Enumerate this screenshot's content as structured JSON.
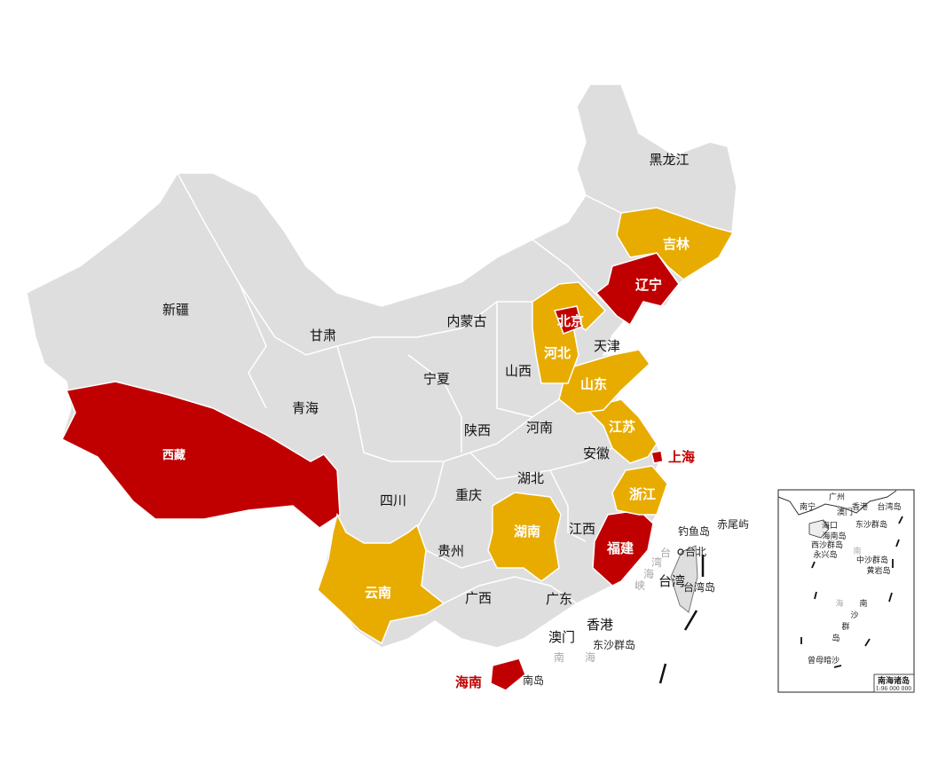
{
  "colors": {
    "base": "#dedede",
    "red": "#c00000",
    "yellow": "#e8ac00",
    "label_red": "#c00000"
  },
  "legend_categories": {
    "red": [
      "北京",
      "辽宁",
      "西藏",
      "福建",
      "上海",
      "海南"
    ],
    "yellow": [
      "吉林",
      "河北",
      "山东",
      "江苏",
      "浙江",
      "湖南",
      "云南"
    ]
  },
  "labels": {
    "heilongjiang": "黑龙江",
    "jilin": "吉林",
    "liaoning": "辽宁",
    "beijing": "北京",
    "tianjin": "天津",
    "hebei": "河北",
    "shandong": "山东",
    "neimenggu": "内蒙古",
    "xinjiang": "新疆",
    "gansu": "甘肃",
    "ningxia": "宁夏",
    "shanxi": "山西",
    "qinghai": "青海",
    "shaanxi": "陕西",
    "henan": "河南",
    "jiangsu": "江苏",
    "shanghai": "上海",
    "anhui": "安徽",
    "xizang": "西藏",
    "sichuan": "四川",
    "chongqing": "重庆",
    "hubei": "湖北",
    "zhejiang": "浙江",
    "hunan": "湖南",
    "jiangxi": "江西",
    "fujian": "福建",
    "guizhou": "贵州",
    "yunnan": "云南",
    "guangxi": "广西",
    "guangdong": "广东",
    "taiwan": "台湾",
    "taibei": "台北",
    "taiwan_dao": "台湾岛",
    "diaoyu": "钓鱼岛",
    "chiwei": "赤尾屿",
    "xianggang": "香港",
    "aomen": "澳门",
    "dongsha": "东沙群岛",
    "hainan": "海南",
    "hainan_dao": "南岛",
    "nanhai_1": "南",
    "nanhai_2": "海",
    "strait_1": "台",
    "strait_2": "湾",
    "strait_3": "海",
    "strait_4": "峡"
  },
  "inset": {
    "title": "南海诸岛",
    "scale": "1:96 000 000",
    "labels": [
      "南宁",
      "广州",
      "香港",
      "澳门",
      "台湾岛",
      "海口",
      "东沙群岛",
      "海南岛",
      "西沙群岛",
      "永兴岛",
      "中沙群岛",
      "黄岩岛",
      "南",
      "海",
      "南",
      "沙",
      "群",
      "岛",
      "曾母暗沙"
    ]
  }
}
